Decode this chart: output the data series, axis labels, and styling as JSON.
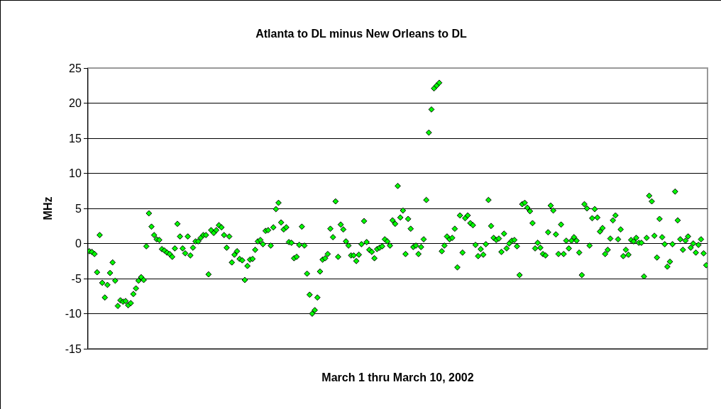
{
  "chart_data": {
    "type": "scatter",
    "title": "Atlanta to DL minus New Orleans to DL",
    "xlabel": "March 1 thru March 10, 2002",
    "ylabel": "MHz",
    "categories": [
      null,
      null,
      null,
      null,
      null,
      null,
      null,
      null,
      null,
      null,
      null,
      null,
      null,
      null,
      null,
      null,
      null,
      null,
      null,
      null,
      null,
      null,
      null,
      null,
      null,
      null,
      null,
      null,
      null,
      null,
      null,
      null,
      null,
      null,
      null,
      null,
      null,
      null,
      null,
      null,
      null,
      null,
      null,
      null,
      null,
      null,
      null,
      null,
      null,
      null,
      null,
      null,
      null,
      null,
      null,
      null,
      null,
      null,
      null,
      null,
      null,
      null,
      null,
      null,
      null,
      null,
      null,
      null,
      null,
      null,
      null,
      null,
      null,
      null,
      null,
      null,
      null,
      null,
      null,
      null,
      null,
      null,
      null,
      null,
      null,
      null,
      null,
      null,
      null,
      null,
      null,
      null,
      null,
      null,
      null,
      null,
      null,
      null,
      null,
      null,
      null,
      null,
      null,
      null,
      null,
      null,
      null,
      null,
      null,
      null,
      null,
      null,
      null,
      null,
      null,
      null,
      null,
      null,
      null,
      null,
      null,
      null,
      null,
      null,
      null,
      null,
      null,
      null,
      null,
      null,
      null,
      null,
      null,
      null,
      null,
      null,
      null,
      null,
      null,
      null,
      null,
      null,
      null,
      null,
      null,
      null,
      null,
      null,
      null,
      null,
      null,
      null,
      null,
      null,
      null,
      null,
      null,
      null,
      null,
      null,
      null,
      null,
      null,
      null,
      null,
      null,
      null,
      null,
      null,
      null,
      null,
      null,
      null,
      null,
      null,
      null,
      null,
      null,
      null,
      null,
      null,
      null,
      null,
      null,
      null,
      null,
      null,
      null,
      null,
      null,
      null,
      null,
      null,
      null,
      null,
      null,
      null,
      null,
      null,
      null,
      null,
      null,
      null,
      null,
      null,
      null,
      null,
      null,
      null,
      null,
      null,
      null,
      null,
      null,
      null,
      null,
      null,
      null,
      null,
      null,
      null,
      null,
      null,
      null,
      null,
      null,
      null,
      null,
      null,
      null,
      null,
      null,
      null,
      null,
      null,
      null,
      null,
      null,
      null
    ],
    "series": [
      {
        "color": "#00ff00",
        "values": [
          -1.1,
          -1.2,
          -1.5,
          -4.1,
          1.2,
          -5.6,
          -7.7,
          -5.9,
          -4.2,
          -2.7,
          -5.3,
          -8.9,
          -8.1,
          -8.3,
          -8.2,
          -8.8,
          -8.5,
          -7.2,
          -6.4,
          -5.3,
          -4.8,
          -5.2,
          -0.4,
          4.3,
          2.4,
          1.2,
          0.6,
          0.5,
          -0.8,
          -1.0,
          -1.3,
          -1.5,
          -1.9,
          -0.7,
          2.8,
          1.0,
          -0.7,
          -1.4,
          1.0,
          -1.7,
          -0.6,
          0.3,
          0.3,
          0.8,
          1.2,
          1.2,
          -4.4,
          1.9,
          1.5,
          1.9,
          2.6,
          2.3,
          1.2,
          -0.6,
          1.0,
          -2.7,
          -1.6,
          -1.1,
          -2.2,
          -2.4,
          -5.2,
          -3.2,
          -2.3,
          -2.2,
          -0.9,
          0.3,
          0.5,
          -0.1,
          1.8,
          1.9,
          -0.3,
          2.3,
          4.9,
          5.8,
          3.0,
          2.0,
          2.3,
          0.2,
          0.1,
          -2.1,
          -1.9,
          -0.2,
          2.4,
          -0.3,
          -4.3,
          -7.3,
          -10.0,
          -9.5,
          -7.7,
          -4.0,
          -2.3,
          -2.1,
          -1.5,
          2.1,
          0.9,
          6.0,
          -1.9,
          2.7,
          2.0,
          0.3,
          -0.3,
          -1.7,
          -1.7,
          -2.5,
          -1.6,
          -0.1,
          3.2,
          0.2,
          -0.9,
          -1.2,
          -2.1,
          -0.8,
          -0.6,
          -0.4,
          0.6,
          0.3,
          -0.3,
          3.3,
          2.8,
          8.2,
          3.7,
          4.7,
          -1.5,
          3.5,
          2.1,
          -0.5,
          -0.3,
          -1.5,
          -0.5,
          0.6,
          6.2,
          15.8,
          19.1,
          22.1,
          22.5,
          22.9,
          -1.1,
          -0.3,
          1.0,
          0.6,
          0.8,
          2.1,
          -3.4,
          4.0,
          -1.3,
          3.6,
          4.0,
          2.9,
          2.6,
          -0.2,
          -1.8,
          -0.8,
          -1.6,
          -0.1,
          6.2,
          2.5,
          0.8,
          0.5,
          0.7,
          -1.2,
          1.4,
          -0.7,
          0.0,
          0.4,
          0.5,
          -0.4,
          -4.5,
          5.6,
          5.8,
          5.1,
          4.6,
          2.9,
          -0.7,
          0.1,
          -0.6,
          -1.5,
          -1.7,
          1.6,
          5.4,
          4.7,
          1.3,
          -1.5,
          2.7,
          -1.5,
          0.4,
          -0.7,
          0.4,
          0.9,
          0.4,
          -1.3,
          -4.5,
          5.6,
          5.0,
          -0.3,
          3.6,
          4.9,
          3.7,
          1.7,
          2.2,
          -1.5,
          -0.9,
          0.7,
          3.3,
          4.0,
          0.6,
          2.0,
          -1.8,
          -0.9,
          -1.6,
          0.5,
          0.3,
          0.8,
          0.1,
          0.1,
          -4.7,
          0.8,
          6.8,
          6.0,
          1.1,
          -2.0,
          3.5,
          0.9,
          -0.1,
          -3.3,
          -2.6,
          -0.1,
          7.4,
          3.3,
          0.6,
          -0.9,
          0.4,
          1.0,
          -0.6,
          0.0,
          -1.3,
          -0.2,
          0.6,
          -1.4,
          -3.1
        ]
      }
    ],
    "ylim": [
      -15,
      25
    ],
    "yticks": [
      -15,
      -10,
      -5,
      0,
      5,
      10,
      15,
      20,
      25
    ],
    "grid": "y",
    "marker": "diamond",
    "tick_labels": "y"
  }
}
